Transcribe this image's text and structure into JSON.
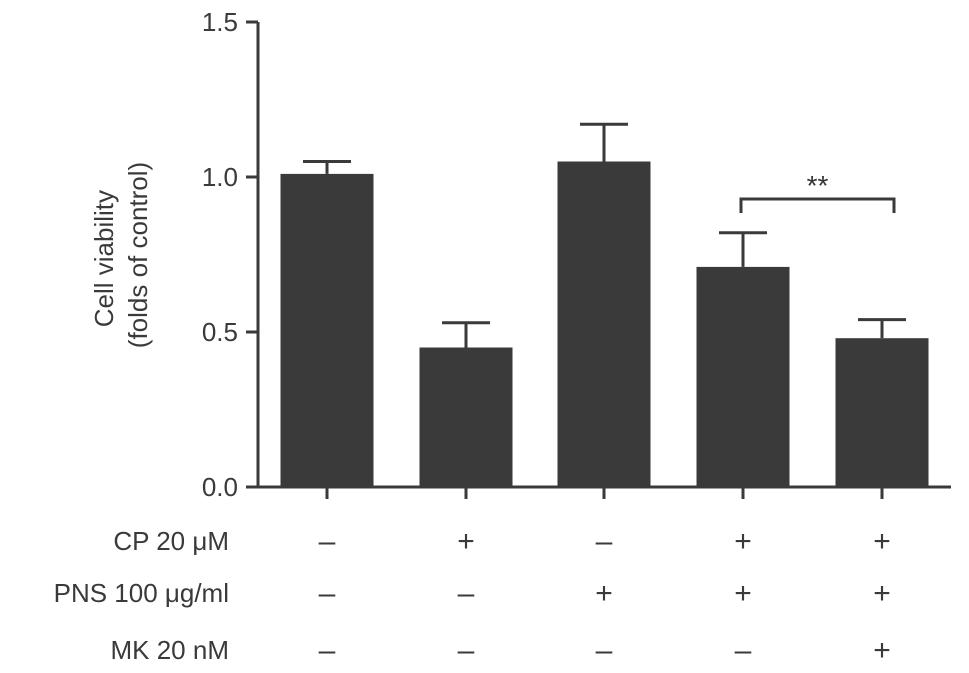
{
  "chart_data": {
    "type": "bar",
    "ylabel_line1": "Cell viability",
    "ylabel_line2": "(folds of control)",
    "ylim": [
      0,
      1.5
    ],
    "yticks": [
      "0.0",
      "0.5",
      "1.0",
      "1.5"
    ],
    "values": [
      1.01,
      0.45,
      1.05,
      0.71,
      0.48
    ],
    "errors": [
      0.04,
      0.08,
      0.12,
      0.11,
      0.06
    ],
    "bar_color": "#3a3a3a",
    "significance": {
      "from": 3,
      "to": 4,
      "label": "**"
    },
    "conditions": [
      {
        "label": "CP 20 μM",
        "signs": [
          "–",
          "+",
          "–",
          "+",
          "+"
        ]
      },
      {
        "label": "PNS 100 μg/ml",
        "signs": [
          "–",
          "–",
          "+",
          "+",
          "+"
        ]
      },
      {
        "label": "MK 20 nM",
        "signs": [
          "–",
          "–",
          "–",
          "–",
          "+"
        ]
      }
    ]
  }
}
